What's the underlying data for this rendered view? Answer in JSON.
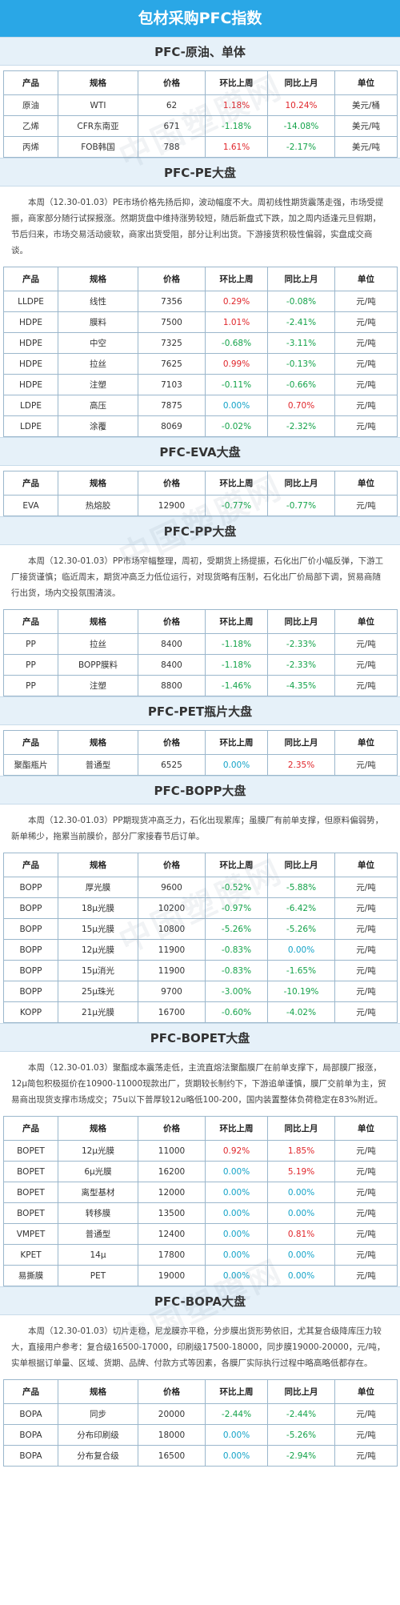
{
  "title": "包材采购PFC指数",
  "watermark": "中国塑膜网",
  "headers": [
    "产品",
    "规格",
    "价格",
    "环比上周",
    "同比上月",
    "单位"
  ],
  "sections": [
    {
      "title": "PFC-原油、单体",
      "desc": "",
      "rows": [
        [
          "原油",
          "WTI",
          "62",
          "1.18%",
          "10.24%",
          "美元/桶"
        ],
        [
          "乙烯",
          "CFR东南亚",
          "671",
          "-1.18%",
          "-14.08%",
          "美元/吨"
        ],
        [
          "丙烯",
          "FOB韩国",
          "788",
          "1.61%",
          "-2.17%",
          "美元/吨"
        ]
      ]
    },
    {
      "title": "PFC-PE大盘",
      "desc": "本周（12.30-01.03）PE市场价格先扬后抑，波动幅度不大。周初线性期货震荡走强，市场受提振，商家部分随行试探报涨。然期货盘中维持涨势较短，随后新盘式下跌，加之周内适逢元旦假期，节后归来，市场交易活动疲软，商家出货受阻，部分让利出货。下游接货积极性偏弱，实盘成交商谈。",
      "rows": [
        [
          "LLDPE",
          "线性",
          "7356",
          "0.29%",
          "-0.08%",
          "元/吨"
        ],
        [
          "HDPE",
          "膜料",
          "7500",
          "1.01%",
          "-2.41%",
          "元/吨"
        ],
        [
          "HDPE",
          "中空",
          "7325",
          "-0.68%",
          "-3.11%",
          "元/吨"
        ],
        [
          "HDPE",
          "拉丝",
          "7625",
          "0.99%",
          "-0.13%",
          "元/吨"
        ],
        [
          "HDPE",
          "注塑",
          "7103",
          "-0.11%",
          "-0.66%",
          "元/吨"
        ],
        [
          "LDPE",
          "高压",
          "7875",
          "0.00%",
          "0.70%",
          "元/吨"
        ],
        [
          "LDPE",
          "涂覆",
          "8069",
          "-0.02%",
          "-2.32%",
          "元/吨"
        ]
      ]
    },
    {
      "title": "PFC-EVA大盘",
      "desc": "",
      "rows": [
        [
          "EVA",
          "热熔胶",
          "12900",
          "-0.77%",
          "-0.77%",
          "元/吨"
        ]
      ]
    },
    {
      "title": "PFC-PP大盘",
      "desc": "本周（12.30-01.03）PP市场窄幅整理，周初，受期货上扬提振，石化出厂价小幅反弹，下游工厂接货谨慎；临近周末，期货冲高乏力低位运行，对现货略有压制，石化出厂价局部下调，贸易商随行出货，场内交投氛围清淡。",
      "rows": [
        [
          "PP",
          "拉丝",
          "8400",
          "-1.18%",
          "-2.33%",
          "元/吨"
        ],
        [
          "PP",
          "BOPP膜料",
          "8400",
          "-1.18%",
          "-2.33%",
          "元/吨"
        ],
        [
          "PP",
          "注塑",
          "8800",
          "-1.46%",
          "-4.35%",
          "元/吨"
        ]
      ]
    },
    {
      "title": "PFC-PET瓶片大盘",
      "desc": "",
      "rows": [
        [
          "聚酯瓶片",
          "普通型",
          "6525",
          "0.00%",
          "2.35%",
          "元/吨"
        ]
      ]
    },
    {
      "title": "PFC-BOPP大盘",
      "desc": "本周（12.30-01.03）PP期现货冲高乏力，石化出现累库；虽膜厂有前单支撑，但原料偏弱势，新单稀少，拖累当前膜价，部分厂家接春节后订单。",
      "rows": [
        [
          "BOPP",
          "厚光膜",
          "9600",
          "-0.52%",
          "-5.88%",
          "元/吨"
        ],
        [
          "BOPP",
          "18μ光膜",
          "10200",
          "-0.97%",
          "-6.42%",
          "元/吨"
        ],
        [
          "BOPP",
          "15μ光膜",
          "10800",
          "-5.26%",
          "-5.26%",
          "元/吨"
        ],
        [
          "BOPP",
          "12μ光膜",
          "11900",
          "-0.83%",
          "0.00%",
          "元/吨"
        ],
        [
          "BOPP",
          "15μ消光",
          "11900",
          "-0.83%",
          "-1.65%",
          "元/吨"
        ],
        [
          "BOPP",
          "25μ珠光",
          "9700",
          "-3.00%",
          "-10.19%",
          "元/吨"
        ],
        [
          "KOPP",
          "21μ光膜",
          "16700",
          "-0.60%",
          "-4.02%",
          "元/吨"
        ]
      ]
    },
    {
      "title": "PFC-BOPET大盘",
      "desc": "本周（12.30-01.03）聚酯成本震荡走低，主流直熔法聚酯膜厂在前单支撑下，局部膜厂报涨，12μ简包积极挺价在10900-11000现款出厂，货期较长制约下，下游追单谨慎，膜厂交前单为主，贸易商出现货支撑市场成交；75u以下普厚较12u略低100-200，国内装置整体负荷稳定在83%附近。",
      "rows": [
        [
          "BOPET",
          "12μ光膜",
          "11000",
          "0.92%",
          "1.85%",
          "元/吨"
        ],
        [
          "BOPET",
          "6μ光膜",
          "16200",
          "0.00%",
          "5.19%",
          "元/吨"
        ],
        [
          "BOPET",
          "离型基材",
          "12000",
          "0.00%",
          "0.00%",
          "元/吨"
        ],
        [
          "BOPET",
          "转移膜",
          "13500",
          "0.00%",
          "0.00%",
          "元/吨"
        ],
        [
          "VMPET",
          "普通型",
          "12400",
          "0.00%",
          "0.81%",
          "元/吨"
        ],
        [
          "KPET",
          "14μ",
          "17800",
          "0.00%",
          "0.00%",
          "元/吨"
        ],
        [
          "易撕膜",
          "PET",
          "19000",
          "0.00%",
          "0.00%",
          "元/吨"
        ]
      ]
    },
    {
      "title": "PFC-BOPA大盘",
      "desc": "本周（12.30-01.03）切片走稳，尼龙膜亦平稳，分步膜出货形势依旧，尤其复合级降库压力较大，直接用户参考：复合级16500-17000，印刷级17500-18000，同步膜19000-20000，元/吨，实单根据订单量、区域、货期、品牌、付款方式等因素，各膜厂实际执行过程中略高略低都存在。",
      "rows": [
        [
          "BOPA",
          "同步",
          "20000",
          "-2.44%",
          "-2.44%",
          "元/吨"
        ],
        [
          "BOPA",
          "分布印刷级",
          "18000",
          "0.00%",
          "-5.26%",
          "元/吨"
        ],
        [
          "BOPA",
          "分布复合级",
          "16500",
          "0.00%",
          "-2.94%",
          "元/吨"
        ]
      ]
    }
  ]
}
